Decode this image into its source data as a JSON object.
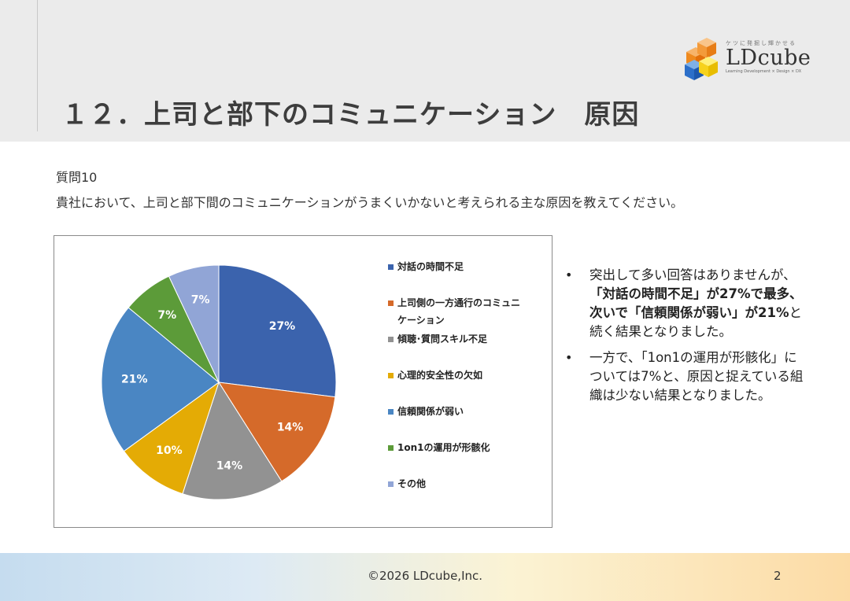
{
  "header": {
    "title": "１２．上司と部下のコミュニケーション　原因",
    "logo": {
      "name": "LDcube",
      "tagline": "ケツに発掘し輝かせる",
      "sub": "Learning Development × Design × DX"
    }
  },
  "question": {
    "number": "質問10",
    "text": "貴社において、上司と部下間のコミュニケーションがうまくいかないと考えられる主な原因を教えてください。"
  },
  "chart_data": {
    "type": "pie",
    "categories": [
      "対話の時間不足",
      "上司側の一方通行のコミュニケーション",
      "傾聴・質問スキル不足",
      "心理的安全性の欠如",
      "信頼関係が弱い",
      "1on1の運用が形骸化",
      "その他"
    ],
    "legend_lines": [
      [
        "対話の時間不足"
      ],
      [
        "上司側の一方通行のコミュニ",
        "ケーション"
      ],
      [
        "傾聴･質問スキル不足"
      ],
      [
        "心理的安全性の欠如"
      ],
      [
        "信頼関係が弱い"
      ],
      [
        "1on1の運用が形骸化"
      ],
      [
        "その他"
      ]
    ],
    "values": [
      27,
      14,
      14,
      10,
      21,
      7,
      7
    ],
    "labels": [
      "27%",
      "14%",
      "14%",
      "10%",
      "21%",
      "7%",
      "7%"
    ],
    "colors": [
      "#3b63ad",
      "#d56a2a",
      "#929292",
      "#e4ab05",
      "#4a86c3",
      "#5c9b39",
      "#91a5d6"
    ],
    "legend_position": "right"
  },
  "notes": {
    "note1": {
      "line1": "突出して多い回答はありませんが、",
      "bold1": "「対話の時間不足」が27%で最多、",
      "bold2": "次いで「信頼関係が弱い」が21%",
      "tail2": "と",
      "line4": "続く結果となりました。"
    },
    "note2": {
      "line1": "一方で、「1on1の運用が形骸化」に",
      "line2": "ついては7%と、原因と捉えている組",
      "line3": "織は少ない結果となりました。"
    },
    "bullet": "•"
  },
  "footer": {
    "copyright": "©2026 LDcube,Inc.",
    "page": "2"
  }
}
